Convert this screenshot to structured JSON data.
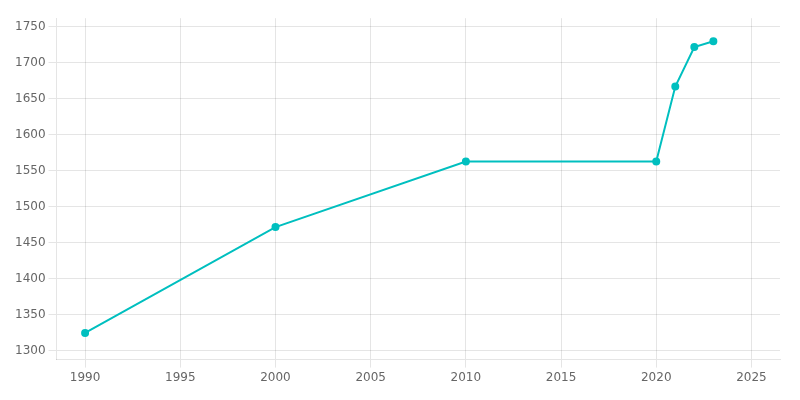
{
  "chart_data": {
    "type": "line",
    "x": [
      1990,
      2000,
      2010,
      2020,
      2021,
      2022,
      2023
    ],
    "values": [
      1325,
      1472,
      1563,
      1563,
      1667,
      1722,
      1730
    ],
    "color": "#00BFBF",
    "marker": "circle",
    "xlim": [
      1988.5,
      2026.5
    ],
    "ylim": [
      1288,
      1762
    ],
    "xticks": [
      1990,
      1995,
      2000,
      2005,
      2010,
      2015,
      2020,
      2025
    ],
    "yticks": [
      1300,
      1350,
      1400,
      1450,
      1500,
      1550,
      1600,
      1650,
      1700,
      1750
    ],
    "grid": true
  }
}
